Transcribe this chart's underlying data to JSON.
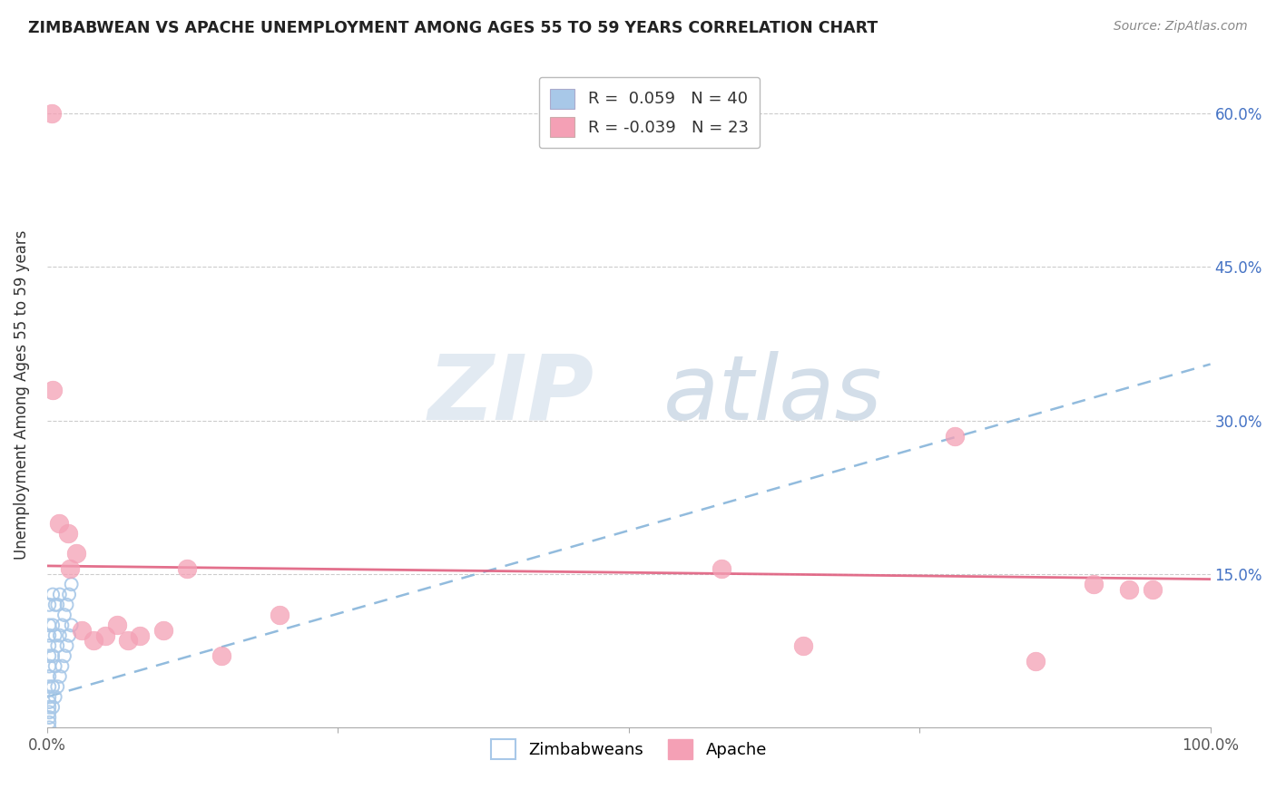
{
  "title": "ZIMBABWEAN VS APACHE UNEMPLOYMENT AMONG AGES 55 TO 59 YEARS CORRELATION CHART",
  "source": "Source: ZipAtlas.com",
  "ylabel": "Unemployment Among Ages 55 to 59 years",
  "xlim": [
    0,
    1.0
  ],
  "ylim": [
    0,
    0.65
  ],
  "ytick_positions": [
    0.15,
    0.3,
    0.45,
    0.6
  ],
  "ytick_labels": [
    "15.0%",
    "30.0%",
    "45.0%",
    "60.0%"
  ],
  "blue_R": 0.059,
  "blue_N": 40,
  "pink_R": -0.039,
  "pink_N": 23,
  "blue_color": "#a8c8e8",
  "pink_color": "#f4a0b5",
  "blue_line_color": "#7fb0d8",
  "pink_line_color": "#e06080",
  "watermark_zip": "ZIP",
  "watermark_atlas": "atlas",
  "blue_line_x0": 0.0,
  "blue_line_y0": 0.03,
  "blue_line_x1": 1.0,
  "blue_line_y1": 0.355,
  "pink_line_x0": 0.0,
  "pink_line_y0": 0.158,
  "pink_line_x1": 1.0,
  "pink_line_y1": 0.145,
  "blue_points_x": [
    0.002,
    0.002,
    0.002,
    0.002,
    0.002,
    0.002,
    0.002,
    0.002,
    0.002,
    0.002,
    0.002,
    0.002,
    0.002,
    0.002,
    0.002,
    0.005,
    0.005,
    0.005,
    0.005,
    0.005,
    0.007,
    0.007,
    0.007,
    0.007,
    0.009,
    0.009,
    0.009,
    0.011,
    0.011,
    0.011,
    0.013,
    0.013,
    0.015,
    0.015,
    0.017,
    0.017,
    0.019,
    0.019,
    0.021,
    0.021
  ],
  "blue_points_y": [
    0.0,
    0.005,
    0.01,
    0.015,
    0.02,
    0.025,
    0.03,
    0.04,
    0.05,
    0.06,
    0.07,
    0.08,
    0.09,
    0.1,
    0.12,
    0.02,
    0.04,
    0.07,
    0.1,
    0.13,
    0.03,
    0.06,
    0.09,
    0.12,
    0.04,
    0.08,
    0.12,
    0.05,
    0.09,
    0.13,
    0.06,
    0.1,
    0.07,
    0.11,
    0.08,
    0.12,
    0.09,
    0.13,
    0.1,
    0.14
  ],
  "pink_points_x": [
    0.004,
    0.005,
    0.01,
    0.018,
    0.02,
    0.025,
    0.03,
    0.04,
    0.05,
    0.06,
    0.07,
    0.08,
    0.1,
    0.12,
    0.15,
    0.2,
    0.58,
    0.65,
    0.78,
    0.85,
    0.9,
    0.93,
    0.95
  ],
  "pink_points_y": [
    0.6,
    0.33,
    0.2,
    0.19,
    0.155,
    0.17,
    0.095,
    0.085,
    0.09,
    0.1,
    0.085,
    0.09,
    0.095,
    0.155,
    0.07,
    0.11,
    0.155,
    0.08,
    0.285,
    0.065,
    0.14,
    0.135,
    0.135
  ]
}
